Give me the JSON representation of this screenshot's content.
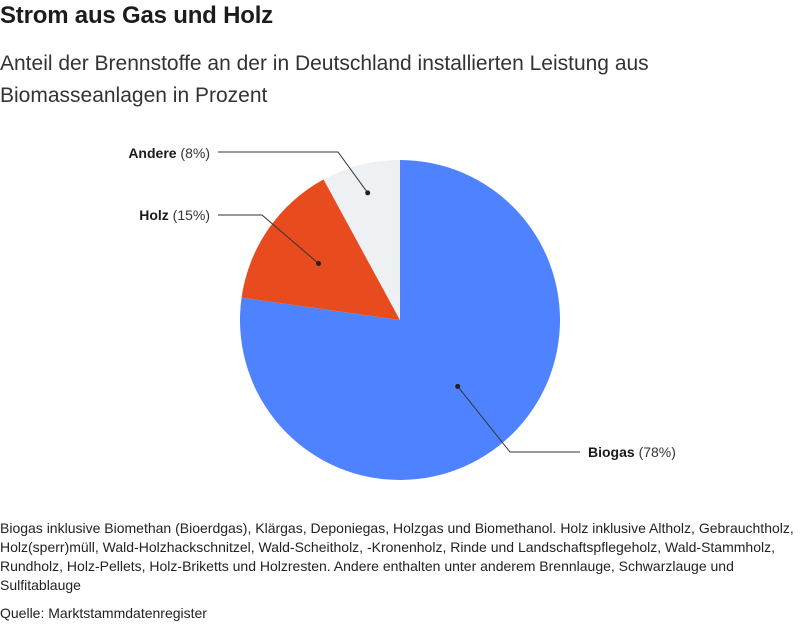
{
  "title": "Strom aus Gas und Holz",
  "subtitle": "Anteil der Brennstoffe an der in Deutschland installierten Leistung aus Biomasseanlagen in Prozent",
  "chart_data": {
    "type": "pie",
    "slices": [
      {
        "name": "Biogas",
        "value": 78,
        "pct_label": "(78%)",
        "color": "#4f82ff"
      },
      {
        "name": "Holz",
        "value": 15,
        "pct_label": "(15%)",
        "color": "#e84c1e"
      },
      {
        "name": "Andere",
        "value": 8,
        "pct_label": "(8%)",
        "color": "#eef1f4"
      }
    ]
  },
  "notes": "Biogas inklusive Biomethan (Bioerdgas), Klärgas, Deponiegas, Holzgas und Biomethanol. Holz inklusive Altholz, Gebrauchtholz, Holz(sperr)müll, Wald-Holzhackschnitzel, Wald-Scheitholz, -Kronenholz, Rinde und Landschaftspflegeholz, Wald-Stammholz, Rundholz, Holz-Pellets, Holz-Briketts und Holzresten. Andere enthalten unter anderem Brennlauge, Schwarzlauge und Sulfitablauge",
  "source": "Quelle: Marktstammdatenregister"
}
